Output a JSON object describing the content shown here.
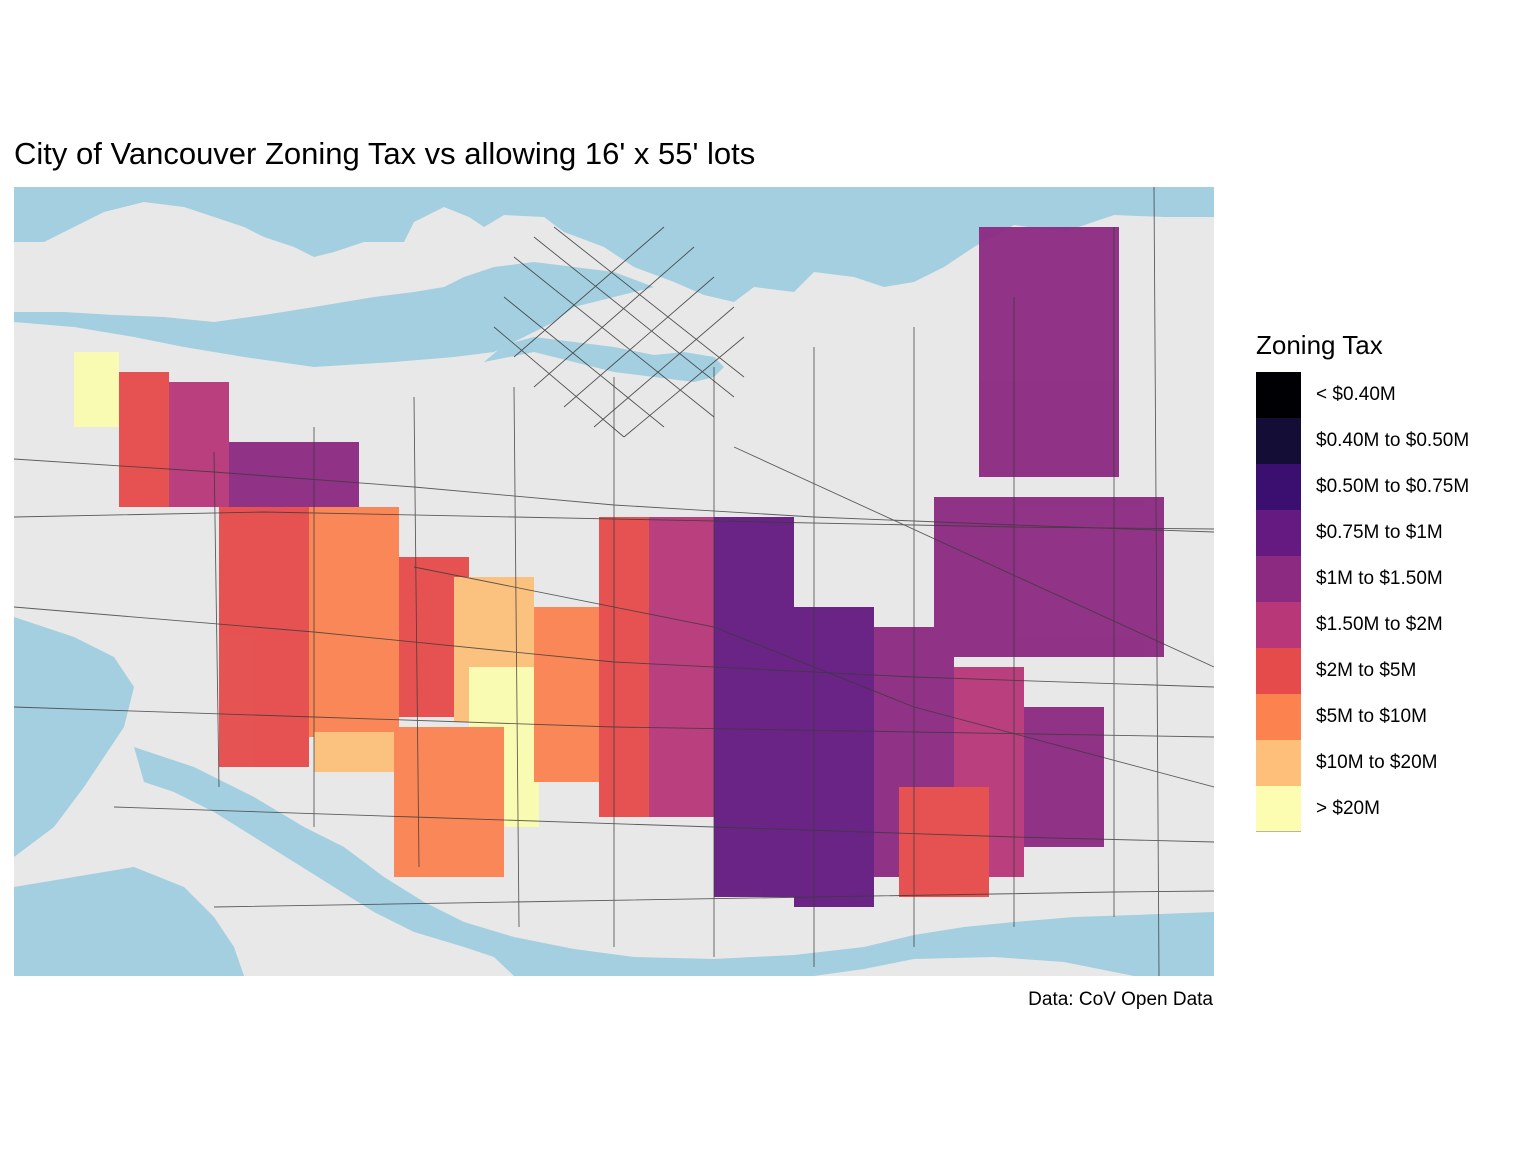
{
  "title": "City of Vancouver Zoning Tax vs allowing 16' x 55' lots",
  "caption": "Data: CoV Open Data",
  "colors": {
    "water": "#a3cfe0",
    "land": "#e8e8e8",
    "road": "#3a3a3a"
  },
  "legend": {
    "title": "Zoning Tax",
    "items": [
      {
        "label": "< $0.40M",
        "color": "#000004"
      },
      {
        "label": "$0.40M to $0.50M",
        "color": "#140e36"
      },
      {
        "label": "$0.50M to $0.75M",
        "color": "#3b0f70"
      },
      {
        "label": "$0.75M to $1M",
        "color": "#641a80"
      },
      {
        "label": "$1M to $1.50M",
        "color": "#8c2981"
      },
      {
        "label": "$1.50M to $2M",
        "color": "#b73779"
      },
      {
        "label": "$2M to $5M",
        "color": "#e64b4b"
      },
      {
        "label": "$5M to $10M",
        "color": "#fc8250"
      },
      {
        "label": "$10M to $20M",
        "color": "#fdbf7a"
      },
      {
        "label": "> $20M",
        "color": "#fcfdb0"
      }
    ]
  }
}
